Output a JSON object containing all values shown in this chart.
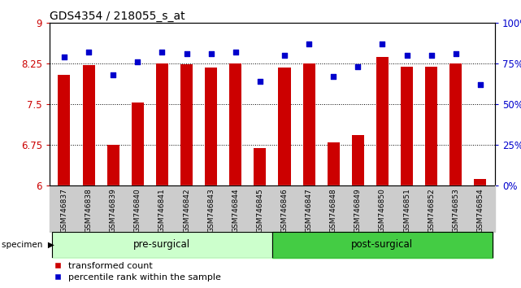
{
  "title": "GDS4354 / 218055_s_at",
  "samples": [
    "GSM746837",
    "GSM746838",
    "GSM746839",
    "GSM746840",
    "GSM746841",
    "GSM746842",
    "GSM746843",
    "GSM746844",
    "GSM746845",
    "GSM746846",
    "GSM746847",
    "GSM746848",
    "GSM746849",
    "GSM746850",
    "GSM746851",
    "GSM746852",
    "GSM746853",
    "GSM746854"
  ],
  "bar_values": [
    8.05,
    8.22,
    6.76,
    7.53,
    8.25,
    8.24,
    8.18,
    8.25,
    6.7,
    8.18,
    8.25,
    6.8,
    6.93,
    8.38,
    8.2,
    8.2,
    8.25,
    6.12
  ],
  "dot_values": [
    79,
    82,
    68,
    76,
    82,
    81,
    81,
    82,
    64,
    80,
    87,
    67,
    73,
    87,
    80,
    80,
    81,
    62
  ],
  "bar_color": "#cc0000",
  "dot_color": "#0000cc",
  "ylim_left": [
    6,
    9
  ],
  "ylim_right": [
    0,
    100
  ],
  "yticks_left": [
    6,
    6.75,
    7.5,
    8.25,
    9
  ],
  "ytick_labels_left": [
    "6",
    "6.75",
    "7.5",
    "8.25",
    "9"
  ],
  "yticks_right": [
    0,
    25,
    50,
    75,
    100
  ],
  "ytick_labels_right": [
    "0%",
    "25%",
    "50%",
    "75%",
    "100%"
  ],
  "pre_surgical_count": 9,
  "group_labels": [
    "pre-surgical",
    "post-surgical"
  ],
  "specimen_label": "specimen",
  "legend_bar_label": "transformed count",
  "legend_dot_label": "percentile rank within the sample",
  "grid_color": "black",
  "bar_width": 0.5,
  "pre_color": "#ccffcc",
  "post_color": "#44cc44",
  "xlabel_bg_color": "#cccccc",
  "fig_bg_color": "#ffffff"
}
